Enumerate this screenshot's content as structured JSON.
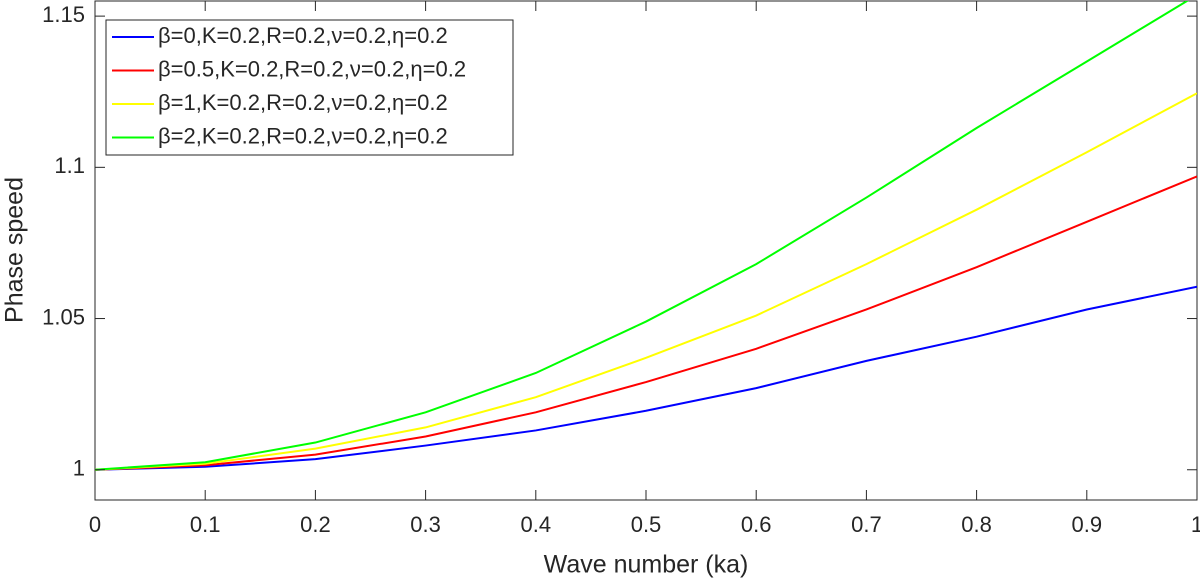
{
  "chart_data": {
    "type": "line",
    "xlabel": "Wave number (ka)",
    "ylabel": "Phase speed",
    "x": [
      0,
      0.1,
      0.2,
      0.3,
      0.4,
      0.5,
      0.6,
      0.7,
      0.8,
      0.9,
      1
    ],
    "series": [
      {
        "name": "β=0,K=0.2,R=0.2,ν=0.2,η=0.2",
        "color": "#0000ff",
        "values": [
          1,
          1.001,
          1.0035,
          1.008,
          1.013,
          1.0195,
          1.027,
          1.036,
          1.044,
          1.053,
          1.0605
        ]
      },
      {
        "name": "β=0.5,K=0.2,R=0.2,ν=0.2,η=0.2",
        "color": "#ff0000",
        "values": [
          1,
          1.0015,
          1.005,
          1.011,
          1.019,
          1.029,
          1.04,
          1.053,
          1.067,
          1.082,
          1.097
        ]
      },
      {
        "name": "β=1,K=0.2,R=0.2,ν=0.2,η=0.2",
        "color": "#ffff00",
        "values": [
          1,
          1.002,
          1.007,
          1.014,
          1.024,
          1.037,
          1.051,
          1.068,
          1.086,
          1.105,
          1.1245
        ]
      },
      {
        "name": "β=2,K=0.2,R=0.2,ν=0.2,η=0.2",
        "color": "#00ff00",
        "values": [
          1,
          1.0025,
          1.009,
          1.019,
          1.032,
          1.049,
          1.068,
          1.09,
          1.113,
          1.135,
          1.157
        ]
      }
    ],
    "xlim": [
      0,
      1
    ],
    "xticks": [
      0,
      0.1,
      0.2,
      0.3,
      0.4,
      0.5,
      0.6,
      0.7,
      0.8,
      0.9,
      1
    ],
    "ylim": [
      0.99,
      1.155
    ],
    "yticks": [
      1,
      1.05,
      1.1,
      1.15
    ],
    "legend": "upper-left"
  }
}
